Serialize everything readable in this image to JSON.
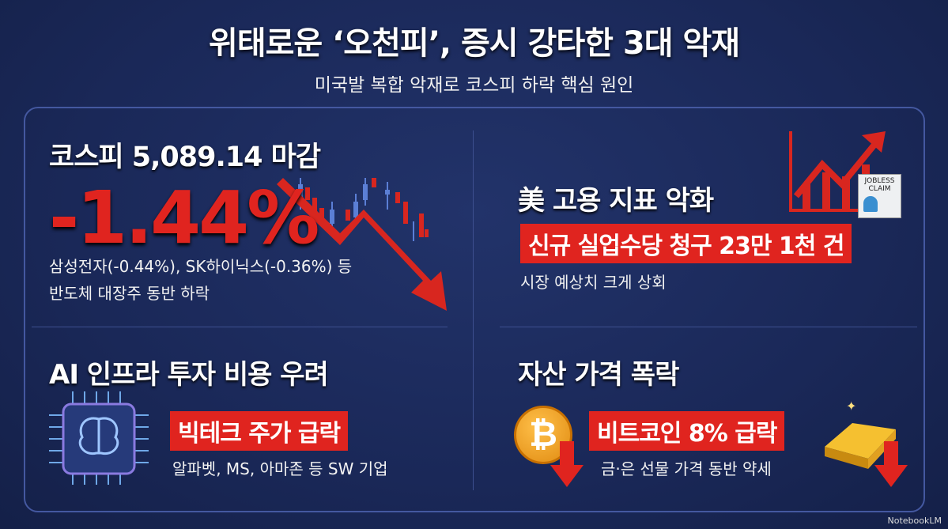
{
  "header": {
    "title": "위태로운 ‘오천피’, 증시 강타한 3대 악재",
    "subtitle": "미국발 복합 악재로 코스피 하락 핵심 원인"
  },
  "kospi": {
    "heading": "코스피 5,089.14 마감",
    "change": "-1.44%",
    "line1": "삼성전자(-0.44%), SK하이닉스(-0.36%) 등",
    "line2": "반도체 대장주 동반 하락",
    "icon": "falling-arrow-candlestick-icon"
  },
  "jobs": {
    "heading": "美 고용 지표 악화",
    "highlight": "신규 실업수당 청구 23만 1천 건",
    "detail": "시장 예상치 크게 상회",
    "icon": "rising-chart-icon",
    "doc_label_1": "JOBLESS",
    "doc_label_2": "CLAIM"
  },
  "ai": {
    "heading": "AI 인프라 투자 비용 우려",
    "highlight": "빅테크 주가 급락",
    "detail": "알파벳, MS, 아마존 등 SW 기업",
    "icon": "ai-chip-brain-icon"
  },
  "assets": {
    "heading": "자산 가격 폭락",
    "highlight": "비트코인 8% 급락",
    "detail": "금·은 선물 가격 동반 약세",
    "icons": [
      "bitcoin-icon",
      "gold-bar-icon",
      "down-arrow-icon"
    ]
  },
  "watermark": "NotebookLM",
  "colors": {
    "background": "#1b2a5c",
    "accent": "#e0241f",
    "border": "#4458a0"
  }
}
